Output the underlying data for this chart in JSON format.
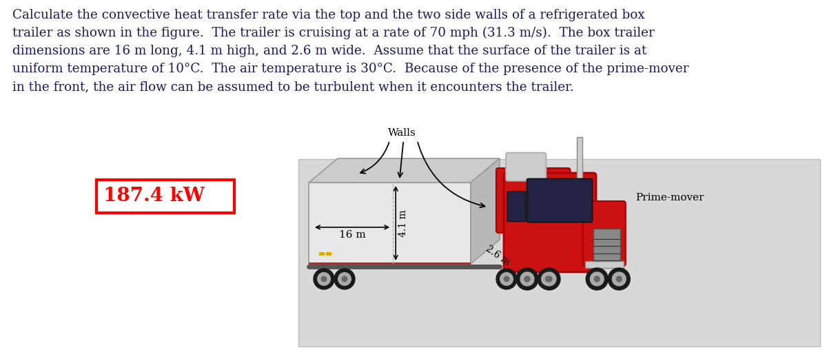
{
  "title_lines": [
    "Calculate the convective heat transfer rate via the top and the two side walls of a refrigerated box",
    "trailer as shown in the figure.  The trailer is cruising at a rate of 70 mph (31.3 m/s).  The box trailer",
    "dimensions are 16 m long, 4.1 m high, and 2.6 m wide.  Assume that the surface of the trailer is at",
    "uniform temperature of 10°C.  The air temperature is 30°C.  Because of the presence of the prime-mover",
    "in the front, the air flow can be assumed to be turbulent when it encounters the trailer."
  ],
  "result_text": "187.4 kW",
  "result_box_color": "#ff0000",
  "result_text_color": "#ff0000",
  "title_color": "#1a1a5e",
  "bg_color": "#ffffff",
  "panel_bg": "#d8d8d8",
  "panel_border": "#bbbbbb",
  "trailer_face_color": "#e8e8e8",
  "trailer_top_color": "#cccccc",
  "trailer_side_color": "#b8b8b8",
  "trailer_edge_color": "#999999",
  "cab_main_color": "#cc1111",
  "cab_dark_color": "#aa0000",
  "cab_chrome_color": "#cccccc",
  "cab_window_color": "#222244",
  "cab_grill_color": "#888888",
  "wheel_color": "#1a1a1a",
  "wheel_inner_color": "#444444",
  "walls_label": "Walls",
  "prime_mover_label": "Prime-mover",
  "dim_16m": "16 m",
  "dim_41m": "4.1 m",
  "dim_26m": "2.6 m",
  "title_fontsize": 13.2,
  "result_fontsize": 20,
  "label_fontsize": 10.5
}
